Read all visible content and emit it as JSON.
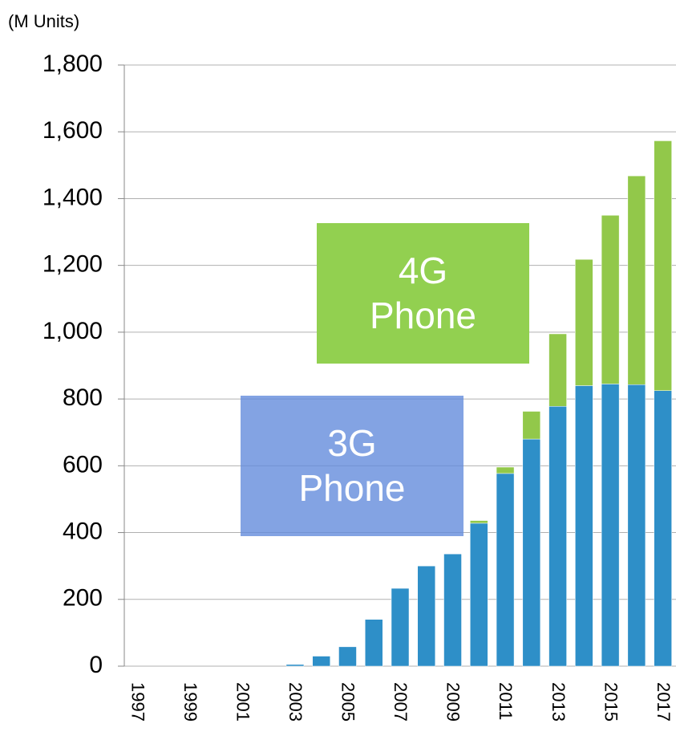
{
  "chart_data": {
    "type": "stacked_bar",
    "y_axis_label": "(M Units)",
    "categories": [
      "1997",
      null,
      "1999",
      null,
      "2001",
      null,
      "2003",
      null,
      "2005",
      null,
      "2007",
      null,
      "2009",
      null,
      "2011",
      null,
      "2013",
      null,
      "2015",
      null,
      "2017"
    ],
    "series": [
      {
        "name": "3G Phone",
        "color": "#2e8fc8",
        "values": [
          0,
          0,
          0,
          0,
          0,
          0,
          5,
          30,
          58,
          140,
          233,
          300,
          336,
          428,
          577,
          680,
          778,
          840,
          845,
          843,
          825
        ]
      },
      {
        "name": "4G Phone",
        "color": "#92c84a",
        "values": [
          0,
          0,
          0,
          0,
          0,
          0,
          0,
          0,
          0,
          0,
          0,
          0,
          0,
          8,
          19,
          83,
          217,
          378,
          505,
          625,
          748
        ]
      }
    ],
    "ylim": [
      0,
      1800
    ],
    "yticks": [
      0,
      200,
      400,
      600,
      800,
      {
        "value": 1000,
        "label": "1,000"
      },
      {
        "value": 1200,
        "label": "1,200"
      },
      {
        "value": 1400,
        "label": "1,400"
      },
      {
        "value": 1600,
        "label": "1,600"
      },
      {
        "value": 1800,
        "label": "1,800"
      }
    ],
    "grid": true
  }
}
